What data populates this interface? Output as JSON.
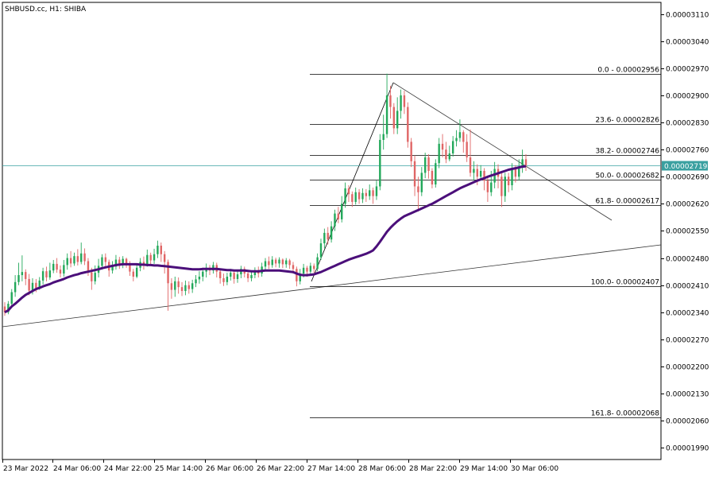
{
  "chart_title": "SHBUSD.cc, H1:  SHIBA",
  "current_price_label": "0.00002719",
  "colors": {
    "bull": "#22a85a",
    "bear": "#e06666",
    "ma": "#4b0f7a",
    "price_line": "#3aa0a0",
    "grid_text": "#000000",
    "current_price_bg": "#3aa0a0"
  },
  "chart_data": {
    "type": "candlestick",
    "ylim": [
      1.96e-05,
      3.14e-05
    ],
    "y_ticks": [
      {
        "value": 3.11e-05,
        "label": "0.00003110"
      },
      {
        "value": 3.04e-05,
        "label": "0.00003040"
      },
      {
        "value": 2.97e-05,
        "label": "0.00002970"
      },
      {
        "value": 2.9e-05,
        "label": "0.00002900"
      },
      {
        "value": 2.83e-05,
        "label": "0.00002830"
      },
      {
        "value": 2.76e-05,
        "label": "0.00002760"
      },
      {
        "value": 2.69e-05,
        "label": "0.00002690"
      },
      {
        "value": 2.62e-05,
        "label": "0.00002620"
      },
      {
        "value": 2.55e-05,
        "label": "0.00002550"
      },
      {
        "value": 2.48e-05,
        "label": "0.00002480"
      },
      {
        "value": 2.41e-05,
        "label": "0.00002410"
      },
      {
        "value": 2.34e-05,
        "label": "0.00002340"
      },
      {
        "value": 2.27e-05,
        "label": "0.00002270"
      },
      {
        "value": 2.2e-05,
        "label": "0.00002200"
      },
      {
        "value": 2.13e-05,
        "label": "0.00002130"
      },
      {
        "value": 2.06e-05,
        "label": "0.00002060"
      },
      {
        "value": 1.99e-05,
        "label": "0.00001990"
      }
    ],
    "x_ticks": [
      "23 Mar 2022",
      "24 Mar 06:00",
      "24 Mar 22:00",
      "25 Mar 14:00",
      "26 Mar 06:00",
      "26 Mar 22:00",
      "27 Mar 14:00",
      "28 Mar 06:00",
      "28 Mar 22:00",
      "29 Mar 14:00",
      "30 Mar 06:00"
    ],
    "current_price": 2.719e-05,
    "fibonacci": [
      {
        "label": "0.0 - 0.00002956",
        "value": 2.956e-05
      },
      {
        "label": "23.6- 0.00002826",
        "value": 2.826e-05
      },
      {
        "label": "38.2- 0.00002746",
        "value": 2.746e-05
      },
      {
        "label": "50.0- 0.00002682",
        "value": 2.682e-05
      },
      {
        "label": "61.8- 0.00002617",
        "value": 2.617e-05
      },
      {
        "label": "100.0- 0.00002407",
        "value": 2.407e-05
      },
      {
        "label": "161.8- 0.00002068",
        "value": 2.068e-05
      }
    ],
    "candles": [
      [
        2.355e-05,
        2.34e-05,
        2.366e-05,
        2.331e-05
      ],
      [
        2.34e-05,
        2.362e-05,
        2.369e-05,
        2.335e-05
      ],
      [
        2.362e-05,
        2.392e-05,
        2.4e-05,
        2.355e-05
      ],
      [
        2.392e-05,
        2.418e-05,
        2.436e-05,
        2.38e-05
      ],
      [
        2.418e-05,
        2.436e-05,
        2.468e-05,
        2.41e-05
      ],
      [
        2.436e-05,
        2.444e-05,
        2.487e-05,
        2.42e-05
      ],
      [
        2.444e-05,
        2.426e-05,
        2.451e-05,
        2.41e-05
      ],
      [
        2.426e-05,
        2.396e-05,
        2.439e-05,
        2.384e-05
      ],
      [
        2.396e-05,
        2.416e-05,
        2.428e-05,
        2.386e-05
      ],
      [
        2.416e-05,
        2.403e-05,
        2.426e-05,
        2.392e-05
      ],
      [
        2.403e-05,
        2.422e-05,
        2.431e-05,
        2.398e-05
      ],
      [
        2.422e-05,
        2.446e-05,
        2.455e-05,
        2.412e-05
      ],
      [
        2.446e-05,
        2.43e-05,
        2.458e-05,
        2.42e-05
      ],
      [
        2.43e-05,
        2.448e-05,
        2.468e-05,
        2.424e-05
      ],
      [
        2.448e-05,
        2.465e-05,
        2.475e-05,
        2.441e-05
      ],
      [
        2.465e-05,
        2.45e-05,
        2.48e-05,
        2.442e-05
      ],
      [
        2.45e-05,
        2.44e-05,
        2.461e-05,
        2.43e-05
      ],
      [
        2.44e-05,
        2.462e-05,
        2.475e-05,
        2.432e-05
      ],
      [
        2.462e-05,
        2.48e-05,
        2.492e-05,
        2.45e-05
      ],
      [
        2.48e-05,
        2.466e-05,
        2.498e-05,
        2.456e-05
      ],
      [
        2.466e-05,
        2.485e-05,
        2.494e-05,
        2.46e-05
      ],
      [
        2.485e-05,
        2.47e-05,
        2.503e-05,
        2.461e-05
      ],
      [
        2.47e-05,
        2.492e-05,
        2.52e-05,
        2.464e-05
      ],
      [
        2.492e-05,
        2.472e-05,
        2.505e-05,
        2.462e-05
      ],
      [
        2.472e-05,
        2.443e-05,
        2.48e-05,
        2.434e-05
      ],
      [
        2.443e-05,
        2.42e-05,
        2.455e-05,
        2.398e-05
      ],
      [
        2.42e-05,
        2.442e-05,
        2.461e-05,
        2.412e-05
      ],
      [
        2.442e-05,
        2.46e-05,
        2.478e-05,
        2.43e-05
      ],
      [
        2.46e-05,
        2.482e-05,
        2.49e-05,
        2.45e-05
      ],
      [
        2.482e-05,
        2.47e-05,
        2.492e-05,
        2.455e-05
      ],
      [
        2.47e-05,
        2.448e-05,
        2.476e-05,
        2.432e-05
      ],
      [
        2.448e-05,
        2.458e-05,
        2.472e-05,
        2.44e-05
      ],
      [
        2.458e-05,
        2.476e-05,
        2.488e-05,
        2.45e-05
      ],
      [
        2.476e-05,
        2.462e-05,
        2.483e-05,
        2.452e-05
      ],
      [
        2.462e-05,
        2.478e-05,
        2.485e-05,
        2.454e-05
      ],
      [
        2.478e-05,
        2.465e-05,
        2.481e-05,
        2.455e-05
      ],
      [
        2.465e-05,
        2.445e-05,
        2.472e-05,
        2.434e-05
      ],
      [
        2.445e-05,
        2.432e-05,
        2.452e-05,
        2.42e-05
      ],
      [
        2.432e-05,
        2.455e-05,
        2.462e-05,
        2.428e-05
      ],
      [
        2.455e-05,
        2.47e-05,
        2.48e-05,
        2.446e-05
      ],
      [
        2.47e-05,
        2.462e-05,
        2.484e-05,
        2.45e-05
      ],
      [
        2.462e-05,
        2.488e-05,
        2.502e-05,
        2.458e-05
      ],
      [
        2.488e-05,
        2.474e-05,
        2.494e-05,
        2.462e-05
      ],
      [
        2.474e-05,
        2.49e-05,
        2.504e-05,
        2.465e-05
      ],
      [
        2.49e-05,
        2.512e-05,
        2.525e-05,
        2.48e-05
      ],
      [
        2.512e-05,
        2.49e-05,
        2.52e-05,
        2.47e-05
      ],
      [
        2.49e-05,
        2.47e-05,
        2.498e-05,
        2.44e-05
      ],
      [
        2.47e-05,
        2.415e-05,
        2.476e-05,
        2.344e-05
      ],
      [
        2.415e-05,
        2.398e-05,
        2.428e-05,
        2.375e-05
      ],
      [
        2.398e-05,
        2.42e-05,
        2.432e-05,
        2.38e-05
      ],
      [
        2.42e-05,
        2.405e-05,
        2.43e-05,
        2.388e-05
      ],
      [
        2.405e-05,
        2.395e-05,
        2.418e-05,
        2.382e-05
      ],
      [
        2.395e-05,
        2.41e-05,
        2.422e-05,
        2.384e-05
      ],
      [
        2.41e-05,
        2.4e-05,
        2.42e-05,
        2.388e-05
      ],
      [
        2.4e-05,
        2.415e-05,
        2.424e-05,
        2.39e-05
      ],
      [
        2.415e-05,
        2.425e-05,
        2.436e-05,
        2.405e-05
      ],
      [
        2.425e-05,
        2.432e-05,
        2.446e-05,
        2.414e-05
      ],
      [
        2.432e-05,
        2.445e-05,
        2.455e-05,
        2.42e-05
      ],
      [
        2.445e-05,
        2.455e-05,
        2.466e-05,
        2.43e-05
      ],
      [
        2.455e-05,
        2.448e-05,
        2.462e-05,
        2.436e-05
      ],
      [
        2.448e-05,
        2.462e-05,
        2.47e-05,
        2.44e-05
      ],
      [
        2.462e-05,
        2.445e-05,
        2.468e-05,
        2.43e-05
      ],
      [
        2.445e-05,
        2.428e-05,
        2.452e-05,
        2.414e-05
      ],
      [
        2.428e-05,
        2.418e-05,
        2.44e-05,
        2.408e-05
      ],
      [
        2.418e-05,
        2.432e-05,
        2.442e-05,
        2.41e-05
      ],
      [
        2.432e-05,
        2.442e-05,
        2.452e-05,
        2.422e-05
      ],
      [
        2.442e-05,
        2.426e-05,
        2.448e-05,
        2.414e-05
      ],
      [
        2.426e-05,
        2.438e-05,
        2.449e-05,
        2.416e-05
      ],
      [
        2.438e-05,
        2.452e-05,
        2.46e-05,
        2.428e-05
      ],
      [
        2.452e-05,
        2.44e-05,
        2.458e-05,
        2.43e-05
      ],
      [
        2.44e-05,
        2.428e-05,
        2.448e-05,
        2.418e-05
      ],
      [
        2.428e-05,
        2.436e-05,
        2.446e-05,
        2.42e-05
      ],
      [
        2.436e-05,
        2.448e-05,
        2.456e-05,
        2.428e-05
      ],
      [
        2.448e-05,
        2.44e-05,
        2.458e-05,
        2.43e-05
      ],
      [
        2.44e-05,
        2.458e-05,
        2.468e-05,
        2.432e-05
      ],
      [
        2.458e-05,
        2.472e-05,
        2.48e-05,
        2.448e-05
      ],
      [
        2.472e-05,
        2.462e-05,
        2.484e-05,
        2.452e-05
      ],
      [
        2.462e-05,
        2.476e-05,
        2.485e-05,
        2.455e-05
      ],
      [
        2.476e-05,
        2.466e-05,
        2.481e-05,
        2.456e-05
      ],
      [
        2.466e-05,
        2.476e-05,
        2.482e-05,
        2.455e-05
      ],
      [
        2.476e-05,
        2.464e-05,
        2.479e-05,
        2.454e-05
      ],
      [
        2.464e-05,
        2.474e-05,
        2.48e-05,
        2.455e-05
      ],
      [
        2.474e-05,
        2.462e-05,
        2.478e-05,
        2.452e-05
      ],
      [
        2.462e-05,
        2.452e-05,
        2.47e-05,
        2.44e-05
      ],
      [
        2.452e-05,
        2.42e-05,
        2.458e-05,
        2.407e-05
      ],
      [
        2.42e-05,
        2.44e-05,
        2.452e-05,
        2.412e-05
      ],
      [
        2.44e-05,
        2.455e-05,
        2.465e-05,
        2.43e-05
      ],
      [
        2.455e-05,
        2.445e-05,
        2.46e-05,
        2.432e-05
      ],
      [
        2.445e-05,
        2.46e-05,
        2.468e-05,
        2.44e-05
      ],
      [
        2.46e-05,
        2.452e-05,
        2.466e-05,
        2.442e-05
      ],
      [
        2.452e-05,
        2.482e-05,
        2.492e-05,
        2.446e-05
      ],
      [
        2.482e-05,
        2.518e-05,
        2.53e-05,
        2.475e-05
      ],
      [
        2.518e-05,
        2.545e-05,
        2.556e-05,
        2.505e-05
      ],
      [
        2.545e-05,
        2.528e-05,
        2.56e-05,
        2.515e-05
      ],
      [
        2.528e-05,
        2.562e-05,
        2.575e-05,
        2.52e-05
      ],
      [
        2.562e-05,
        2.595e-05,
        2.605e-05,
        2.55e-05
      ],
      [
        2.595e-05,
        2.58e-05,
        2.612e-05,
        2.57e-05
      ],
      [
        2.58e-05,
        2.62e-05,
        2.64e-05,
        2.572e-05
      ],
      [
        2.62e-05,
        2.66e-05,
        2.675e-05,
        2.61e-05
      ],
      [
        2.66e-05,
        2.645e-05,
        2.668e-05,
        2.625e-05
      ],
      [
        2.645e-05,
        2.625e-05,
        2.652e-05,
        2.612e-05
      ],
      [
        2.625e-05,
        2.65e-05,
        2.662e-05,
        2.618e-05
      ],
      [
        2.65e-05,
        2.632e-05,
        2.658e-05,
        2.62e-05
      ],
      [
        2.632e-05,
        2.648e-05,
        2.66e-05,
        2.622e-05
      ],
      [
        2.648e-05,
        2.64e-05,
        2.658e-05,
        2.625e-05
      ],
      [
        2.64e-05,
        2.655e-05,
        2.67e-05,
        2.63e-05
      ],
      [
        2.655e-05,
        2.64e-05,
        2.662e-05,
        2.62e-05
      ],
      [
        2.64e-05,
        2.665e-05,
        2.68e-05,
        2.63e-05
      ],
      [
        2.665e-05,
        2.785e-05,
        2.8e-05,
        2.655e-05
      ],
      [
        2.785e-05,
        2.8e-05,
        2.85e-05,
        2.76e-05
      ],
      [
        2.8e-05,
        2.9e-05,
        2.956e-05,
        2.79e-05
      ],
      [
        2.9e-05,
        2.87e-05,
        2.925e-05,
        2.84e-05
      ],
      [
        2.87e-05,
        2.815e-05,
        2.88e-05,
        2.8e-05
      ],
      [
        2.815e-05,
        2.86e-05,
        2.895e-05,
        2.8e-05
      ],
      [
        2.86e-05,
        2.9e-05,
        2.915e-05,
        2.84e-05
      ],
      [
        2.9e-05,
        2.87e-05,
        2.912e-05,
        2.852e-05
      ],
      [
        2.87e-05,
        2.78e-05,
        2.882e-05,
        2.765e-05
      ],
      [
        2.78e-05,
        2.73e-05,
        2.79e-05,
        2.715e-05
      ],
      [
        2.73e-05,
        2.665e-05,
        2.745e-05,
        2.64e-05
      ],
      [
        2.665e-05,
        2.65e-05,
        2.69e-05,
        2.6e-05
      ],
      [
        2.65e-05,
        2.7e-05,
        2.715e-05,
        2.64e-05
      ],
      [
        2.7e-05,
        2.74e-05,
        2.752e-05,
        2.686e-05
      ],
      [
        2.74e-05,
        2.705e-05,
        2.748e-05,
        2.685e-05
      ],
      [
        2.705e-05,
        2.67e-05,
        2.712e-05,
        2.66e-05
      ],
      [
        2.67e-05,
        2.725e-05,
        2.735e-05,
        2.662e-05
      ],
      [
        2.725e-05,
        2.775e-05,
        2.79e-05,
        2.712e-05
      ],
      [
        2.775e-05,
        2.76e-05,
        2.8e-05,
        2.74e-05
      ],
      [
        2.76e-05,
        2.735e-05,
        2.78e-05,
        2.725e-05
      ],
      [
        2.735e-05,
        2.75e-05,
        2.77e-05,
        2.73e-05
      ],
      [
        2.75e-05,
        2.782e-05,
        2.795e-05,
        2.742e-05
      ],
      [
        2.782e-05,
        2.79e-05,
        2.81e-05,
        2.768e-05
      ],
      [
        2.79e-05,
        2.805e-05,
        2.838e-05,
        2.78e-05
      ],
      [
        2.805e-05,
        2.78e-05,
        2.81e-05,
        2.752e-05
      ],
      [
        2.78e-05,
        2.74e-05,
        2.8e-05,
        2.728e-05
      ],
      [
        2.74e-05,
        2.7e-05,
        2.812e-05,
        2.69e-05
      ],
      [
        2.7e-05,
        2.71e-05,
        2.73e-05,
        2.68e-05
      ],
      [
        2.71e-05,
        2.69e-05,
        2.722e-05,
        2.668e-05
      ],
      [
        2.69e-05,
        2.705e-05,
        2.72e-05,
        2.68e-05
      ],
      [
        2.705e-05,
        2.68e-05,
        2.712e-05,
        2.655e-05
      ],
      [
        2.68e-05,
        2.65e-05,
        2.69e-05,
        2.625e-05
      ],
      [
        2.65e-05,
        2.675e-05,
        2.705e-05,
        2.64e-05
      ],
      [
        2.675e-05,
        2.71e-05,
        2.728e-05,
        2.66e-05
      ],
      [
        2.71e-05,
        2.69e-05,
        2.722e-05,
        2.66e-05
      ],
      [
        2.69e-05,
        2.64e-05,
        2.7e-05,
        2.612e-05
      ],
      [
        2.64e-05,
        2.69e-05,
        2.7e-05,
        2.625e-05
      ],
      [
        2.69e-05,
        2.668e-05,
        2.7e-05,
        2.65e-05
      ],
      [
        2.668e-05,
        2.71e-05,
        2.725e-05,
        2.655e-05
      ],
      [
        2.71e-05,
        2.69e-05,
        2.72e-05,
        2.675e-05
      ],
      [
        2.69e-05,
        2.715e-05,
        2.735e-05,
        2.68e-05
      ],
      [
        2.715e-05,
        2.735e-05,
        2.76e-05,
        2.7e-05
      ],
      [
        2.735e-05,
        2.719e-05,
        2.748e-05,
        2.705e-05
      ]
    ],
    "moving_average": [
      2.34e-05,
      2.345e-05,
      2.355e-05,
      2.362e-05,
      2.37e-05,
      2.378e-05,
      2.385e-05,
      2.39e-05,
      2.395e-05,
      2.4e-05,
      2.403e-05,
      2.407e-05,
      2.41e-05,
      2.413e-05,
      2.417e-05,
      2.42e-05,
      2.423e-05,
      2.426e-05,
      2.43e-05,
      2.433e-05,
      2.436e-05,
      2.438e-05,
      2.441e-05,
      2.443e-05,
      2.445e-05,
      2.447e-05,
      2.449e-05,
      2.451e-05,
      2.454e-05,
      2.456e-05,
      2.458e-05,
      2.46e-05,
      2.462e-05,
      2.463e-05,
      2.464e-05,
      2.464e-05,
      2.464e-05,
      2.464e-05,
      2.464e-05,
      2.463e-05,
      2.463e-05,
      2.462e-05,
      2.462e-05,
      2.461e-05,
      2.461e-05,
      2.46e-05,
      2.459e-05,
      2.458e-05,
      2.457e-05,
      2.456e-05,
      2.455e-05,
      2.454e-05,
      2.453e-05,
      2.452e-05,
      2.451e-05,
      2.451e-05,
      2.451e-05,
      2.452e-05,
      2.452e-05,
      2.452e-05,
      2.452e-05,
      2.452e-05,
      2.451e-05,
      2.45e-05,
      2.449e-05,
      2.449e-05,
      2.448e-05,
      2.448e-05,
      2.448e-05,
      2.448e-05,
      2.447e-05,
      2.446e-05,
      2.446e-05,
      2.446e-05,
      2.447e-05,
      2.448e-05,
      2.448e-05,
      2.448e-05,
      2.448e-05,
      2.448e-05,
      2.447e-05,
      2.446e-05,
      2.445e-05,
      2.444e-05,
      2.44e-05,
      2.437e-05,
      2.436e-05,
      2.436e-05,
      2.437e-05,
      2.438e-05,
      2.441e-05,
      2.444e-05,
      2.448e-05,
      2.452e-05,
      2.456e-05,
      2.46e-05,
      2.464e-05,
      2.468e-05,
      2.472e-05,
      2.476e-05,
      2.479e-05,
      2.482e-05,
      2.485e-05,
      2.488e-05,
      2.491e-05,
      2.495e-05,
      2.5e-05,
      2.51e-05,
      2.522e-05,
      2.535e-05,
      2.548e-05,
      2.558e-05,
      2.567e-05,
      2.575e-05,
      2.582e-05,
      2.588e-05,
      2.592e-05,
      2.596e-05,
      2.6e-05,
      2.604e-05,
      2.608e-05,
      2.612e-05,
      2.616e-05,
      2.62e-05,
      2.625e-05,
      2.63e-05,
      2.635e-05,
      2.64e-05,
      2.645e-05,
      2.65e-05,
      2.655e-05,
      2.66e-05,
      2.664e-05,
      2.668e-05,
      2.672e-05,
      2.676e-05,
      2.68e-05,
      2.683e-05,
      2.686e-05,
      2.69e-05,
      2.693e-05,
      2.696e-05,
      2.699e-05,
      2.702e-05,
      2.705e-05,
      2.708e-05,
      2.71e-05,
      2.712e-05,
      2.714e-05,
      2.716e-05,
      2.717e-05,
      2.718e-05,
      2.719e-05
    ]
  }
}
